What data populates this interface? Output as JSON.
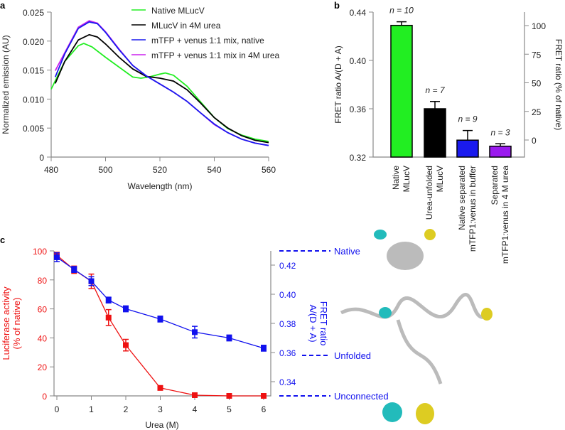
{
  "chart_data": [
    {
      "panel": "a",
      "type": "line",
      "xlabel": "Wavelength (nm)",
      "ylabel": "Normalized emission (AU)",
      "xlim": [
        480,
        560
      ],
      "ylim": [
        0,
        0.025
      ],
      "xticks": [
        "480",
        "500",
        "520",
        "540",
        "560"
      ],
      "yticks": [
        "0",
        "0.005",
        "0.010",
        "0.015",
        "0.020",
        "0.025"
      ],
      "legend_position": "top-right",
      "series": [
        {
          "name": "Native MLucV",
          "color": "#22ee22",
          "x": [
            480,
            485,
            490,
            492,
            495,
            500,
            505,
            510,
            513,
            516,
            520,
            522,
            525,
            530,
            535,
            540,
            545,
            550,
            555,
            560
          ],
          "y": [
            0.0117,
            0.0165,
            0.0192,
            0.0196,
            0.019,
            0.0172,
            0.0155,
            0.0138,
            0.0136,
            0.0138,
            0.0143,
            0.0145,
            0.0141,
            0.0122,
            0.0095,
            0.0068,
            0.0049,
            0.0038,
            0.0031,
            0.0027
          ]
        },
        {
          "name": "MLucV in 4M urea",
          "color": "#000000",
          "x": [
            481.5,
            485,
            490,
            494,
            497,
            500,
            505,
            510,
            515,
            520,
            525,
            530,
            535,
            540,
            545,
            550,
            555,
            560
          ],
          "y": [
            0.0127,
            0.0165,
            0.0202,
            0.0211,
            0.0207,
            0.0195,
            0.0172,
            0.0152,
            0.0139,
            0.0136,
            0.0131,
            0.0116,
            0.0093,
            0.0068,
            0.005,
            0.0037,
            0.0029,
            0.0025
          ]
        },
        {
          "name": "mTFP + venus 1:1 mix in 4M urea",
          "color": "#cc22ee",
          "x": [
            481.5,
            485,
            490,
            494,
            497,
            500,
            505,
            510,
            515,
            520,
            525,
            530,
            535,
            540,
            545,
            550,
            555,
            560
          ],
          "y": [
            0.0149,
            0.018,
            0.0224,
            0.0235,
            0.0231,
            0.0216,
            0.0186,
            0.0158,
            0.014,
            0.0126,
            0.0112,
            0.0096,
            0.0076,
            0.0056,
            0.0042,
            0.0031,
            0.0024,
            0.002
          ]
        },
        {
          "name": "mTFP + venus 1:1 mix, native",
          "color": "#1a1aee",
          "x": [
            481.5,
            485,
            490,
            494,
            497,
            500,
            505,
            510,
            515,
            520,
            525,
            530,
            535,
            540,
            545,
            550,
            555,
            560
          ],
          "y": [
            0.0138,
            0.0178,
            0.0222,
            0.0233,
            0.023,
            0.0215,
            0.0185,
            0.0158,
            0.014,
            0.0126,
            0.0112,
            0.0096,
            0.0076,
            0.0057,
            0.0042,
            0.0031,
            0.0024,
            0.002
          ]
        }
      ],
      "legend": [
        "Native MLucV",
        "MLucV in 4M urea",
        "mTFP + venus 1:1 mix, native",
        "mTFP + venus 1:1 mix in 4M urea"
      ]
    },
    {
      "panel": "b",
      "type": "bar",
      "ylabel": "FRET ratio A/(D + A)",
      "y2label": "FRET ratio (% of native)",
      "ylim": [
        0.32,
        0.44
      ],
      "yticks": [
        "0.32",
        "0.36",
        "0.40",
        "0.44"
      ],
      "y2ticks": [
        "0",
        "25",
        "50",
        "75",
        "100"
      ],
      "categories": [
        [
          "Native",
          "MLucV"
        ],
        [
          "Urea-unfolded",
          "MLucV"
        ],
        [
          "Native separated",
          "mTFP1:venus in buffer"
        ],
        [
          "Separated",
          "mTFP1:venus in 4 M urea"
        ]
      ],
      "values": [
        0.429,
        0.36,
        0.334,
        0.329
      ],
      "errors": [
        0.003,
        0.006,
        0.008,
        0.002
      ],
      "n_labels": [
        "n = 10",
        "n = 7",
        "n = 9",
        "n = 3"
      ],
      "colors": [
        "#22ee22",
        "#000000",
        "#1a1aee",
        "#9a1aee"
      ]
    },
    {
      "panel": "c",
      "type": "line",
      "xlabel": "Urea (M)",
      "ylabel": [
        "Luciferase activity",
        "(% of native)"
      ],
      "y2label": [
        "FRET ratio",
        "A/(D + A)"
      ],
      "xlim": [
        0,
        6
      ],
      "ylim": [
        0,
        100
      ],
      "y2lim": [
        0.3275,
        0.4275
      ],
      "xticks": [
        "0",
        "1",
        "2",
        "3",
        "4",
        "5",
        "6"
      ],
      "yticks": [
        "0",
        "20",
        "40",
        "60",
        "80",
        "100"
      ],
      "y2ticks": [
        "0.34",
        "0.36",
        "0.38",
        "0.40",
        "0.42"
      ],
      "series": [
        {
          "name": "Luciferase activity",
          "color": "#ee1111",
          "x": [
            0,
            0.5,
            1,
            1.5,
            2,
            3,
            4,
            5,
            6
          ],
          "y": [
            97,
            87,
            79,
            54,
            35,
            5.5,
            0.5,
            0,
            0
          ],
          "err": [
            2,
            2.5,
            5,
            5.5,
            4,
            1.5,
            0.5,
            0,
            0
          ]
        },
        {
          "name": "FRET ratio",
          "color": "#1111ee",
          "x": [
            0,
            0.5,
            1,
            1.5,
            2,
            3,
            4,
            5,
            6
          ],
          "y": [
            0.4254,
            0.417,
            0.409,
            0.396,
            0.39,
            0.383,
            0.374,
            0.37,
            0.363
          ],
          "err": [
            0.003,
            0.002,
            0.003,
            0.002,
            0.002,
            0.002,
            0.004,
            0.002,
            0.002
          ]
        }
      ],
      "reference_lines": [
        {
          "label": "Native",
          "value": 0.4275
        },
        {
          "label": "Unfolded",
          "value": 0.358
        },
        {
          "label": "Unconnected",
          "value": 0.3275
        }
      ]
    }
  ],
  "panels": {
    "a": "a",
    "b": "b",
    "c": "c"
  }
}
